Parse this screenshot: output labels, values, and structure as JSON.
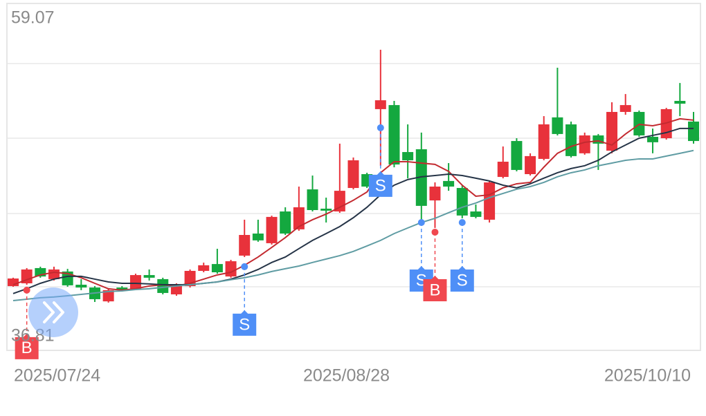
{
  "chart_data": {
    "type": "candlestick",
    "categories": [
      "2025/07/24",
      null,
      null,
      null,
      null,
      null,
      null,
      null,
      null,
      null,
      null,
      null,
      null,
      null,
      null,
      null,
      null,
      null,
      null,
      null,
      null,
      null,
      null,
      null,
      null,
      "2025/08/28",
      null,
      null,
      null,
      null,
      null,
      null,
      null,
      null,
      null,
      null,
      null,
      null,
      null,
      null,
      null,
      null,
      null,
      null,
      null,
      null,
      null,
      null,
      null,
      null,
      "2025/10/10"
    ],
    "open": [
      40.94,
      41.12,
      42.1,
      41.39,
      41.88,
      41.03,
      40.85,
      39.96,
      40.85,
      40.77,
      41.65,
      41.39,
      40.41,
      40.94,
      41.92,
      42.36,
      41.56,
      42.9,
      44.32,
      43.7,
      45.74,
      44.59,
      47.16,
      45.92,
      45.74,
      47.25,
      48.14,
      52.32,
      52.58,
      49.56,
      49.74,
      46.45,
      47.7,
      47.25,
      45.74,
      45.21,
      47.96,
      50.27,
      48.14,
      49.12,
      51.79,
      51.34,
      49.48,
      50.63,
      49.65,
      52.14,
      52.14,
      50.54,
      50.45,
      52.85,
      51.52
    ],
    "close": [
      41.43,
      42.01,
      41.56,
      42.01,
      40.99,
      40.85,
      40.1,
      40.68,
      40.68,
      41.65,
      41.48,
      40.5,
      40.99,
      41.92,
      42.28,
      41.83,
      42.54,
      44.23,
      43.88,
      45.39,
      44.32,
      46.01,
      45.83,
      45.79,
      47.07,
      49.03,
      47.34,
      52.89,
      48.76,
      49.03,
      46.1,
      47.34,
      47.34,
      45.48,
      45.39,
      47.61,
      48.94,
      48.41,
      49.3,
      51.34,
      50.72,
      49.3,
      50.63,
      50.1,
      52.14,
      52.58,
      50.63,
      50.19,
      52.32,
      52.67,
      50.27
    ],
    "high": [
      41.48,
      42.1,
      42.19,
      42.19,
      42.05,
      41.39,
      40.94,
      40.77,
      40.94,
      41.74,
      42.01,
      41.48,
      41.12,
      42.01,
      42.45,
      43.34,
      42.63,
      45.21,
      45.21,
      45.47,
      46.01,
      47.34,
      48.05,
      46.63,
      50.1,
      49.21,
      48.23,
      56.14,
      52.85,
      51.34,
      50.81,
      47.61,
      48.85,
      47.43,
      46.19,
      47.7,
      49.92,
      50.45,
      49.48,
      51.87,
      54.98,
      51.52,
      50.81,
      50.72,
      52.76,
      53.29,
      52.23,
      51.07,
      52.4,
      54.0,
      52.14
    ],
    "low": [
      40.9,
      41.03,
      41.48,
      41.3,
      40.9,
      40.68,
      39.92,
      39.88,
      40.59,
      40.68,
      41.3,
      40.41,
      40.32,
      40.85,
      41.83,
      41.74,
      41.48,
      42.81,
      43.79,
      43.61,
      44.23,
      44.5,
      45.74,
      45.03,
      45.65,
      47.16,
      47.25,
      48.67,
      48.58,
      47.87,
      45.21,
      44.68,
      47.07,
      45.3,
      45.3,
      45.03,
      47.87,
      48.32,
      48.05,
      49.03,
      50.63,
      49.21,
      49.39,
      48.41,
      49.48,
      51.96,
      50.54,
      49.48,
      50.36,
      51.87,
      50.1
    ],
    "up_color": "#e8323b",
    "down_color": "#14a83f",
    "lines": [
      {
        "color": "#c32a30",
        "values": [
          41.03,
          41.35,
          41.66,
          41.83,
          41.75,
          41.48,
          41.12,
          40.77,
          40.68,
          40.77,
          40.95,
          41.03,
          40.95,
          41.12,
          41.39,
          41.66,
          41.83,
          42.28,
          42.81,
          43.43,
          44.06,
          44.77,
          45.21,
          45.57,
          46.01,
          46.46,
          46.99,
          48.23,
          48.94,
          48.94,
          48.85,
          48.77,
          48.32,
          47.43,
          46.72,
          46.81,
          47.26,
          47.52,
          47.61,
          48.59,
          49.48,
          49.92,
          50.19,
          50.28,
          50.01,
          50.72,
          51.34,
          51.25,
          51.43,
          51.7,
          51.61
        ]
      },
      {
        "color": "#253447",
        "values": [
          40.46,
          40.77,
          41.12,
          41.39,
          41.57,
          41.57,
          41.39,
          41.21,
          41.12,
          41.12,
          41.08,
          41.03,
          41.03,
          41.03,
          41.12,
          41.21,
          41.39,
          41.66,
          42.01,
          42.46,
          42.81,
          43.35,
          43.88,
          44.32,
          44.77,
          45.34,
          46.01,
          46.81,
          47.43,
          47.79,
          47.97,
          48.05,
          48.14,
          48.05,
          47.88,
          47.7,
          47.43,
          47.26,
          47.52,
          47.88,
          48.23,
          48.5,
          48.68,
          49.03,
          49.57,
          50.01,
          50.45,
          50.63,
          50.81,
          51.08,
          51.08
        ]
      },
      {
        "color": "#5f9ca3",
        "values": [
          40.01,
          40.1,
          40.19,
          40.24,
          40.32,
          40.41,
          40.5,
          40.59,
          40.63,
          40.72,
          40.77,
          40.86,
          40.95,
          41.03,
          41.12,
          41.21,
          41.35,
          41.48,
          41.66,
          41.88,
          42.06,
          42.23,
          42.46,
          42.68,
          42.9,
          43.17,
          43.52,
          43.88,
          44.32,
          44.68,
          45.03,
          45.3,
          45.66,
          46.01,
          46.28,
          46.63,
          46.9,
          47.17,
          47.34,
          47.61,
          47.97,
          48.23,
          48.41,
          48.68,
          48.85,
          49.03,
          49.12,
          49.12,
          49.3,
          49.48,
          49.66
        ]
      }
    ],
    "signals": [
      {
        "label": "B",
        "at": 1,
        "value": 40.68,
        "color": "#f0484f"
      },
      {
        "label": "S",
        "at": 17,
        "value": 42.19,
        "color": "#4f8ff7"
      },
      {
        "label": "S",
        "at": 27,
        "value": 51.12,
        "color": "#4f8ff7"
      },
      {
        "label": "S",
        "at": 30,
        "value": 45.03,
        "color": "#4f8ff7"
      },
      {
        "label": "B",
        "at": 31,
        "value": 44.41,
        "color": "#f0484f"
      },
      {
        "label": "S",
        "at": 33,
        "value": 45.03,
        "color": "#4f8ff7"
      }
    ],
    "ylim": [
      36.81,
      59.07
    ],
    "yticks": [
      {
        "value": 59.07,
        "label": "59.07"
      },
      {
        "value": 36.81,
        "label": "36.81"
      }
    ],
    "grid_lines": [
      40.9,
      45.61,
      50.45,
      55.25
    ]
  }
}
